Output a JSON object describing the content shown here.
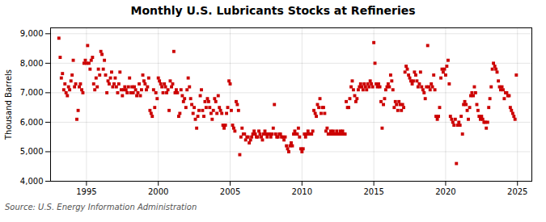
{
  "chart_data": {
    "type": "scatter",
    "title": "Monthly U.S. Lubricants Stocks at Refineries",
    "ylabel": "Thousand Barrels",
    "annotations": [
      "Source: U.S. Energy Information Administration"
    ],
    "color": "#cc0000",
    "marker": "square",
    "grid": true,
    "xlim": [
      1992.5,
      2026.0
    ],
    "xticks": [
      1995,
      2000,
      2005,
      2010,
      2015,
      2020,
      2025
    ],
    "ylim": [
      4000,
      9200
    ],
    "yticks": [
      {
        "value": 4000,
        "label": "4,000"
      },
      {
        "value": 5000,
        "label": "5,000"
      },
      {
        "value": 6000,
        "label": "6,000"
      },
      {
        "value": 7000,
        "label": "7,000"
      },
      {
        "value": 8000,
        "label": "8,000"
      },
      {
        "value": 9000,
        "label": "9,000"
      }
    ],
    "x": [
      1993.08,
      1993.17,
      1993.25,
      1993.33,
      1993.42,
      1993.5,
      1993.58,
      1993.67,
      1993.75,
      1993.83,
      1993.92,
      1994.0,
      1994.08,
      1994.17,
      1994.25,
      1994.33,
      1994.42,
      1994.5,
      1994.58,
      1994.67,
      1994.75,
      1994.83,
      1994.92,
      1995.0,
      1995.08,
      1995.17,
      1995.25,
      1995.33,
      1995.42,
      1995.5,
      1995.58,
      1995.67,
      1995.75,
      1995.83,
      1995.92,
      1996.0,
      1996.08,
      1996.17,
      1996.25,
      1996.33,
      1996.42,
      1996.5,
      1996.58,
      1996.67,
      1996.75,
      1996.83,
      1996.92,
      1997.0,
      1997.08,
      1997.17,
      1997.25,
      1997.33,
      1997.42,
      1997.5,
      1997.58,
      1997.67,
      1997.75,
      1997.83,
      1997.92,
      1998.0,
      1998.08,
      1998.17,
      1998.25,
      1998.33,
      1998.42,
      1998.5,
      1998.58,
      1998.67,
      1998.75,
      1998.83,
      1998.92,
      1999.0,
      1999.08,
      1999.17,
      1999.25,
      1999.33,
      1999.42,
      1999.5,
      1999.58,
      1999.67,
      1999.75,
      1999.83,
      1999.92,
      2000.0,
      2000.08,
      2000.17,
      2000.25,
      2000.33,
      2000.42,
      2000.5,
      2000.58,
      2000.67,
      2000.75,
      2000.83,
      2000.92,
      2001.0,
      2001.08,
      2001.17,
      2001.25,
      2001.33,
      2001.42,
      2001.5,
      2001.58,
      2001.67,
      2001.75,
      2001.83,
      2001.92,
      2002.0,
      2002.08,
      2002.17,
      2002.25,
      2002.33,
      2002.42,
      2002.5,
      2002.58,
      2002.67,
      2002.75,
      2002.83,
      2002.92,
      2003.0,
      2003.08,
      2003.17,
      2003.25,
      2003.33,
      2003.42,
      2003.5,
      2003.58,
      2003.67,
      2003.75,
      2003.83,
      2003.92,
      2004.0,
      2004.08,
      2004.17,
      2004.25,
      2004.33,
      2004.42,
      2004.5,
      2004.58,
      2004.67,
      2004.75,
      2004.83,
      2004.92,
      2005.0,
      2005.08,
      2005.17,
      2005.25,
      2005.33,
      2005.42,
      2005.5,
      2005.58,
      2005.67,
      2005.75,
      2005.83,
      2005.92,
      2006.0,
      2006.08,
      2006.17,
      2006.25,
      2006.33,
      2006.42,
      2006.5,
      2006.58,
      2006.67,
      2006.75,
      2006.83,
      2006.92,
      2007.0,
      2007.08,
      2007.17,
      2007.25,
      2007.33,
      2007.42,
      2007.5,
      2007.58,
      2007.67,
      2007.75,
      2007.83,
      2007.92,
      2008.0,
      2008.08,
      2008.17,
      2008.25,
      2008.33,
      2008.42,
      2008.5,
      2008.58,
      2008.67,
      2008.75,
      2008.83,
      2008.92,
      2009.0,
      2009.08,
      2009.17,
      2009.25,
      2009.33,
      2009.42,
      2009.5,
      2009.58,
      2009.67,
      2009.75,
      2009.83,
      2009.92,
      2010.0,
      2010.08,
      2010.17,
      2010.25,
      2010.33,
      2010.42,
      2010.5,
      2010.58,
      2010.67,
      2010.75,
      2010.83,
      2010.92,
      2011.0,
      2011.08,
      2011.17,
      2011.25,
      2011.33,
      2011.42,
      2011.5,
      2011.58,
      2011.67,
      2011.75,
      2011.83,
      2011.92,
      2012.0,
      2012.08,
      2012.17,
      2012.25,
      2012.33,
      2012.42,
      2012.5,
      2012.58,
      2012.67,
      2012.75,
      2012.83,
      2012.92,
      2013.0,
      2013.08,
      2013.17,
      2013.25,
      2013.33,
      2013.42,
      2013.5,
      2013.58,
      2013.67,
      2013.75,
      2013.83,
      2013.92,
      2014.0,
      2014.08,
      2014.17,
      2014.25,
      2014.33,
      2014.42,
      2014.5,
      2014.58,
      2014.67,
      2014.75,
      2014.83,
      2014.92,
      2015.0,
      2015.08,
      2015.17,
      2015.25,
      2015.33,
      2015.42,
      2015.5,
      2015.58,
      2015.67,
      2015.75,
      2015.83,
      2015.92,
      2016.0,
      2016.08,
      2016.17,
      2016.25,
      2016.33,
      2016.42,
      2016.5,
      2016.58,
      2016.67,
      2016.75,
      2016.83,
      2016.92,
      2017.0,
      2017.08,
      2017.17,
      2017.25,
      2017.33,
      2017.42,
      2017.5,
      2017.58,
      2017.67,
      2017.75,
      2017.83,
      2017.92,
      2018.0,
      2018.08,
      2018.17,
      2018.25,
      2018.33,
      2018.42,
      2018.5,
      2018.58,
      2018.67,
      2018.75,
      2018.83,
      2018.92,
      2019.0,
      2019.08,
      2019.17,
      2019.25,
      2019.33,
      2019.42,
      2019.5,
      2019.58,
      2019.67,
      2019.75,
      2019.83,
      2019.92,
      2020.0,
      2020.08,
      2020.17,
      2020.25,
      2020.33,
      2020.42,
      2020.5,
      2020.58,
      2020.67,
      2020.75,
      2020.83,
      2020.92,
      2021.0,
      2021.08,
      2021.17,
      2021.25,
      2021.33,
      2021.42,
      2021.5,
      2021.58,
      2021.67,
      2021.75,
      2021.83,
      2021.92,
      2022.0,
      2022.08,
      2022.17,
      2022.25,
      2022.33,
      2022.42,
      2022.5,
      2022.58,
      2022.67,
      2022.75,
      2022.83,
      2022.92,
      2023.0,
      2023.08,
      2023.17,
      2023.25,
      2023.33,
      2023.42,
      2023.5,
      2023.58,
      2023.67,
      2023.75,
      2023.83,
      2023.92,
      2024.0,
      2024.08,
      2024.17,
      2024.25,
      2024.33,
      2024.42,
      2024.5,
      2024.58,
      2024.67,
      2024.75,
      2024.83,
      2024.92
    ],
    "values": [
      8850,
      8200,
      7500,
      7650,
      7100,
      7300,
      7000,
      6900,
      7200,
      7100,
      7400,
      7600,
      8100,
      7200,
      7300,
      6100,
      6400,
      7200,
      7300,
      7100,
      7000,
      8000,
      8100,
      8000,
      8600,
      8000,
      7800,
      8100,
      8200,
      7300,
      7100,
      7500,
      7200,
      7800,
      7600,
      8400,
      8300,
      7800,
      8100,
      7600,
      7000,
      7400,
      7300,
      7500,
      7700,
      7200,
      7300,
      7500,
      7200,
      7000,
      7300,
      7700,
      7100,
      6900,
      7100,
      7200,
      7100,
      7000,
      7200,
      7500,
      7000,
      7200,
      7000,
      7200,
      7100,
      6900,
      7000,
      7300,
      6900,
      7100,
      7600,
      7400,
      7300,
      7100,
      7200,
      7500,
      6400,
      6300,
      6200,
      7100,
      6500,
      7000,
      6800,
      7500,
      7400,
      7300,
      7200,
      7000,
      7300,
      7200,
      7000,
      7100,
      6400,
      7400,
      7200,
      7300,
      8400,
      7000,
      7100,
      7000,
      6200,
      6300,
      7100,
      6900,
      6700,
      6800,
      6500,
      7100,
      7500,
      7200,
      6800,
      6600,
      6300,
      6500,
      6100,
      5800,
      6200,
      6400,
      6900,
      7100,
      6400,
      6200,
      6700,
      6500,
      6800,
      6700,
      6500,
      6300,
      6100,
      6400,
      6800,
      6700,
      6300,
      6900,
      6500,
      6400,
      6300,
      5900,
      5800,
      5900,
      6300,
      6500,
      7400,
      7300,
      6400,
      5900,
      5800,
      5700,
      6700,
      6600,
      6400,
      4900,
      5500,
      5800,
      5600,
      5600,
      5400,
      5500,
      5500,
      5300,
      5400,
      5500,
      5600,
      5700,
      5600,
      5500,
      5500,
      5700,
      5600,
      5500,
      5400,
      5600,
      5700,
      5600,
      5500,
      5600,
      5600,
      5500,
      5600,
      5800,
      6600,
      5600,
      5500,
      5500,
      5600,
      5600,
      5500,
      5500,
      5400,
      5500,
      5200,
      5100,
      5000,
      5200,
      5300,
      5200,
      5600,
      5700,
      5600,
      5600,
      5800,
      5500,
      5100,
      5000,
      5100,
      5600,
      5500,
      5600,
      5700,
      5600,
      5600,
      5600,
      5700,
      6400,
      6300,
      6200,
      6600,
      6500,
      6800,
      6300,
      6500,
      6500,
      6300,
      5700,
      5800,
      5600,
      5600,
      5700,
      5600,
      5700,
      5600,
      5600,
      5700,
      5600,
      5600,
      5700,
      5600,
      5700,
      5600,
      5600,
      6700,
      6500,
      6500,
      6800,
      7200,
      7400,
      7100,
      6900,
      6700,
      6800,
      7100,
      7200,
      7300,
      7200,
      7100,
      7300,
      7200,
      7100,
      7300,
      7200,
      7400,
      7300,
      7200,
      8700,
      8000,
      7300,
      7200,
      7300,
      7200,
      6700,
      5800,
      6600,
      6800,
      7100,
      7200,
      7300,
      7200,
      7600,
      7400,
      7100,
      6500,
      6700,
      6600,
      6400,
      6700,
      6600,
      6400,
      6600,
      6500,
      7700,
      7900,
      7800,
      7600,
      7500,
      7400,
      7300,
      7400,
      7700,
      7600,
      7400,
      7200,
      7300,
      7700,
      7200,
      7100,
      7000,
      6800,
      7200,
      8600,
      7200,
      7100,
      7300,
      7200,
      7600,
      7100,
      6200,
      6100,
      6200,
      6500,
      7500,
      7800,
      7700,
      7800,
      7600,
      7900,
      8100,
      7300,
      6200,
      6100,
      6000,
      5900,
      6100,
      4600,
      5900,
      6000,
      5900,
      6200,
      5600,
      6600,
      6700,
      6600,
      6400,
      6100,
      6500,
      6900,
      7000,
      6900,
      7200,
      7000,
      6600,
      6400,
      6200,
      6100,
      6200,
      6100,
      6000,
      6000,
      5800,
      6000,
      6500,
      6800,
      7200,
      7800,
      8000,
      7900,
      7800,
      7700,
      7400,
      7200,
      7100,
      7200,
      7100,
      6800,
      7000,
      7000,
      6900,
      6900,
      6500,
      6400,
      6300,
      6200,
      6100,
      7600
    ]
  }
}
